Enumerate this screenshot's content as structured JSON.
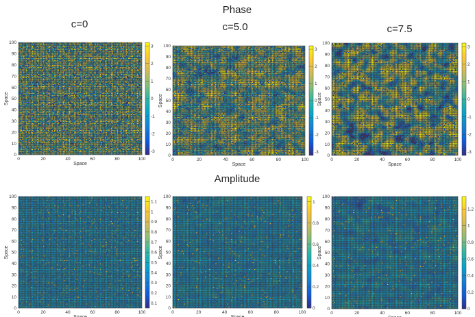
{
  "figure": {
    "section_labels": {
      "phase": "Phase",
      "amplitude": "Amplitude"
    },
    "column_labels": [
      "c=0",
      "c=5.0",
      "c=7.5"
    ]
  },
  "colormap": {
    "name": "parula",
    "stops": [
      "#352a87",
      "#0f5cdd",
      "#1481d6",
      "#06a4ca",
      "#2eb7a4",
      "#87bf77",
      "#d1bb59",
      "#fec832",
      "#f9fb0e"
    ]
  },
  "chart_data": [
    {
      "type": "heatmap",
      "row": "Phase",
      "title": "c=0",
      "xlabel": "Space",
      "ylabel": "Space",
      "xlim": [
        0,
        100
      ],
      "ylim": [
        0,
        100
      ],
      "xticks": [
        "0",
        "20",
        "40",
        "60",
        "80",
        "100"
      ],
      "yticks": [
        "0",
        "10",
        "20",
        "30",
        "40",
        "50",
        "60",
        "70",
        "80",
        "90",
        "100"
      ],
      "grid_cells": 100,
      "color_range": [
        -3.2,
        3.2
      ],
      "colorbar_ticks": [
        "-3",
        "-2",
        "-1",
        "0",
        "1",
        "2",
        "3"
      ],
      "colorbar_values": [
        -3,
        -2,
        -1,
        0,
        1,
        2,
        3
      ],
      "field": {
        "kind": "phase",
        "coupling_c": 0,
        "correlation": 0.0,
        "seed": 11
      }
    },
    {
      "type": "heatmap",
      "row": "Phase",
      "title": "c=5.0",
      "xlabel": "Space",
      "ylabel": "Space",
      "xlim": [
        0,
        100
      ],
      "ylim": [
        0,
        100
      ],
      "xticks": [
        "0",
        "20",
        "40",
        "60",
        "80",
        "100"
      ],
      "yticks": [
        "0",
        "10",
        "20",
        "30",
        "40",
        "50",
        "60",
        "70",
        "80",
        "90",
        "100"
      ],
      "grid_cells": 100,
      "color_range": [
        -3.2,
        3.2
      ],
      "colorbar_ticks": [
        "-3",
        "-2",
        "-1",
        "0",
        "1",
        "2",
        "3"
      ],
      "colorbar_values": [
        -3,
        -2,
        -1,
        0,
        1,
        2,
        3
      ],
      "field": {
        "kind": "phase",
        "coupling_c": 5.0,
        "correlation": 0.45,
        "seed": 23
      }
    },
    {
      "type": "heatmap",
      "row": "Phase",
      "title": "c=7.5",
      "xlabel": "Space",
      "ylabel": "Space",
      "xlim": [
        0,
        100
      ],
      "ylim": [
        0,
        100
      ],
      "xticks": [
        "0",
        "20",
        "40",
        "60",
        "80",
        "100"
      ],
      "yticks": [
        "0",
        "10",
        "20",
        "30",
        "40",
        "50",
        "60",
        "70",
        "80",
        "90",
        "100"
      ],
      "grid_cells": 100,
      "color_range": [
        -3.2,
        3.2
      ],
      "colorbar_ticks": [
        "-3",
        "-2",
        "-1",
        "0",
        "1",
        "2",
        "3"
      ],
      "colorbar_values": [
        -3,
        -2,
        -1,
        0,
        1,
        2,
        3
      ],
      "field": {
        "kind": "phase",
        "coupling_c": 7.5,
        "correlation": 0.7,
        "seed": 37
      }
    },
    {
      "type": "heatmap",
      "row": "Amplitude",
      "title": "c=0",
      "xlabel": "Space",
      "ylabel": "Space",
      "xlim": [
        0,
        100
      ],
      "ylim": [
        0,
        100
      ],
      "xticks": [
        "0",
        "20",
        "40",
        "60",
        "80",
        "100"
      ],
      "yticks": [
        "0",
        "10",
        "20",
        "30",
        "40",
        "50",
        "60",
        "70",
        "80",
        "90",
        "100"
      ],
      "grid_cells": 100,
      "color_range": [
        0.05,
        1.15
      ],
      "colorbar_ticks": [
        "0.1",
        "0.2",
        "0.3",
        "0.4",
        "0.5",
        "0.6",
        "0.7",
        "0.8",
        "0.9",
        "1",
        "1.1"
      ],
      "colorbar_values": [
        0.1,
        0.2,
        0.3,
        0.4,
        0.5,
        0.6,
        0.7,
        0.8,
        0.9,
        1.0,
        1.1
      ],
      "field": {
        "kind": "amplitude",
        "coupling_c": 0,
        "correlation": 0.0,
        "seed": 41
      }
    },
    {
      "type": "heatmap",
      "row": "Amplitude",
      "title": "c=5.0",
      "xlabel": "Space",
      "ylabel": "Space",
      "xlim": [
        0,
        100
      ],
      "ylim": [
        0,
        100
      ],
      "xticks": [
        "0",
        "20",
        "40",
        "60",
        "80",
        "100"
      ],
      "yticks": [
        "0",
        "10",
        "20",
        "30",
        "40",
        "50",
        "60",
        "70",
        "80",
        "90",
        "100"
      ],
      "grid_cells": 100,
      "color_range": [
        0.0,
        1.05
      ],
      "colorbar_ticks": [
        "0",
        "0.2",
        "0.4",
        "0.6",
        "0.8",
        "1"
      ],
      "colorbar_values": [
        0,
        0.2,
        0.4,
        0.6,
        0.8,
        1.0
      ],
      "field": {
        "kind": "amplitude",
        "coupling_c": 5.0,
        "correlation": 0.35,
        "seed": 53
      }
    },
    {
      "type": "heatmap",
      "row": "Amplitude",
      "title": "c=7.5",
      "xlabel": "Space",
      "ylabel": "Space",
      "xlim": [
        0,
        100
      ],
      "ylim": [
        0,
        100
      ],
      "xticks": [
        "0",
        "20",
        "40",
        "60",
        "80",
        "100"
      ],
      "yticks": [
        "0",
        "10",
        "20",
        "30",
        "40",
        "50",
        "60",
        "70",
        "80",
        "90",
        "100"
      ],
      "grid_cells": 100,
      "color_range": [
        0.0,
        1.35
      ],
      "colorbar_ticks": [
        "0",
        "0.2",
        "0.4",
        "0.6",
        "0.8",
        "1",
        "1.2"
      ],
      "colorbar_values": [
        0,
        0.2,
        0.4,
        0.6,
        0.8,
        1.0,
        1.2
      ],
      "field": {
        "kind": "amplitude",
        "coupling_c": 7.5,
        "correlation": 0.6,
        "seed": 67
      }
    }
  ]
}
